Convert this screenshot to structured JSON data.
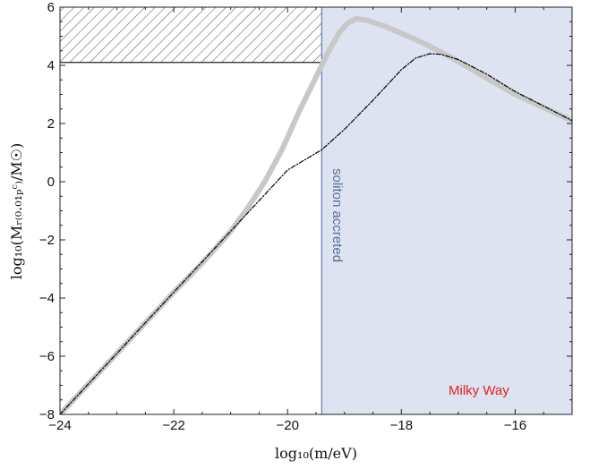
{
  "chart_data": {
    "type": "line",
    "title": "",
    "xlabel": "log₁₀(m/eV)",
    "ylabel": "log₁₀(Mᵣ₍₀.₀₁ₚᶜ₎/M☉)",
    "xlim": [
      -24,
      -15
    ],
    "ylim": [
      -8,
      6
    ],
    "xticks": [
      -24,
      -22,
      -20,
      -18,
      -16
    ],
    "yticks": [
      -8,
      -6,
      -4,
      -2,
      0,
      2,
      4,
      6
    ],
    "grid": false,
    "series": [
      {
        "style": "thick-gray",
        "color": "#c8c8c8",
        "x": [
          -24.0,
          -23.0,
          -22.0,
          -21.5,
          -21.0,
          -20.7,
          -20.4,
          -20.1,
          -19.8,
          -19.5,
          -19.3,
          -19.1,
          -18.95,
          -18.8,
          -18.6,
          -18.3,
          -18.0,
          -17.6,
          -17.2,
          -16.8,
          -16.4,
          -16.0,
          -15.5,
          -15.0
        ],
        "y": [
          -8.0,
          -5.9,
          -3.8,
          -2.8,
          -1.7,
          -0.9,
          0.0,
          1.1,
          2.4,
          3.6,
          4.4,
          5.1,
          5.45,
          5.6,
          5.55,
          5.35,
          5.1,
          4.75,
          4.35,
          3.9,
          3.45,
          3.0,
          2.55,
          2.1
        ]
      },
      {
        "style": "dash-dot-black",
        "color": "#000000",
        "x": [
          -24.0,
          -23.0,
          -22.0,
          -21.0,
          -20.0,
          -19.4,
          -19.0,
          -18.5,
          -18.0,
          -17.75,
          -17.5,
          -17.3,
          -17.0,
          -16.5,
          -16.0,
          -15.5,
          -15.0
        ],
        "y": [
          -8.0,
          -5.9,
          -3.8,
          -1.7,
          0.4,
          1.1,
          1.8,
          2.8,
          3.85,
          4.25,
          4.4,
          4.38,
          4.2,
          3.7,
          3.1,
          2.6,
          2.1
        ]
      }
    ],
    "regions": [
      {
        "kind": "hatched",
        "y_from": 4.1,
        "y_to": 6,
        "x_from": -24,
        "x_to": -15
      },
      {
        "kind": "shaded",
        "x_from": -19.4,
        "x_to": -15,
        "y_from": -8,
        "y_to": 6,
        "color": "#dde3f0",
        "edge": "#6b82a8"
      }
    ],
    "annotations": {
      "soliton": {
        "text": "soliton accreted",
        "color": "#5a6f9a"
      },
      "milky_way": {
        "text": "Milky Way",
        "color": "#e8201c"
      }
    }
  }
}
